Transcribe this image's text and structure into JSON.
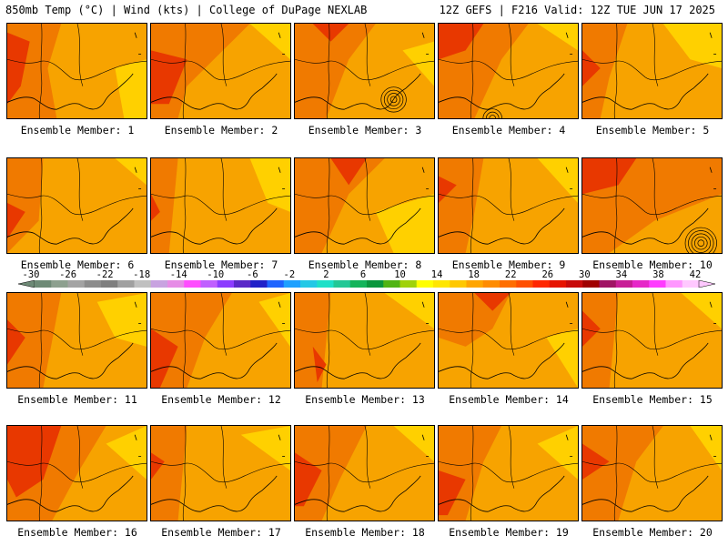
{
  "header": {
    "left": "850mb Temp (°C) | Wind (kts) | College of DuPage NEXLAB",
    "right": "12Z GEFS | F216 Valid: 12Z TUE JUN 17 2025"
  },
  "colors": {
    "background": "#ffffff",
    "land_fill": "#f7a300",
    "warm": "#f07a00",
    "hot": "#e83800",
    "very_hot": "#cc1c00",
    "cool": "#ffd000",
    "outline": "#000000"
  },
  "colorbar": {
    "labels": [
      "-30",
      "-26",
      "-22",
      "-18",
      "-14",
      "-10",
      "-6",
      "-2",
      "2",
      "6",
      "10",
      "14",
      "18",
      "22",
      "26",
      "30",
      "34",
      "38",
      "42"
    ],
    "colors": [
      "#6e8a76",
      "#8da08f",
      "#a3a3a3",
      "#8c8c8c",
      "#7f7f7f",
      "#a0a0a0",
      "#c0c0c0",
      "#c8a3e0",
      "#e68ce6",
      "#ff4dff",
      "#c060ff",
      "#8c3cff",
      "#5a28c8",
      "#2020c8",
      "#1e64ff",
      "#1ea0ff",
      "#23c8e6",
      "#1ee0c8",
      "#23c896",
      "#14b45a",
      "#0a963c",
      "#50b414",
      "#a0d20a",
      "#ffff00",
      "#ffe600",
      "#ffc800",
      "#ffa500",
      "#ff8c00",
      "#ff6e00",
      "#ff5000",
      "#ff2800",
      "#e61400",
      "#c80a0a",
      "#a00000",
      "#a01464",
      "#c81e96",
      "#e628c8",
      "#ff3cff",
      "#ff96ff",
      "#ffc8ff"
    ]
  },
  "panels": [
    {
      "label": "Ensemble Member: 1"
    },
    {
      "label": "Ensemble Member: 2"
    },
    {
      "label": "Ensemble Member: 3"
    },
    {
      "label": "Ensemble Member: 4"
    },
    {
      "label": "Ensemble Member: 5"
    },
    {
      "label": "Ensemble Member: 6"
    },
    {
      "label": "Ensemble Member: 7"
    },
    {
      "label": "Ensemble Member: 8"
    },
    {
      "label": "Ensemble Member: 9"
    },
    {
      "label": "Ensemble Member: 10"
    },
    {
      "label": "Ensemble Member: 11"
    },
    {
      "label": "Ensemble Member: 12"
    },
    {
      "label": "Ensemble Member: 13"
    },
    {
      "label": "Ensemble Member: 14"
    },
    {
      "label": "Ensemble Member: 15"
    },
    {
      "label": "Ensemble Member: 16"
    },
    {
      "label": "Ensemble Member: 17"
    },
    {
      "label": "Ensemble Member: 18"
    },
    {
      "label": "Ensemble Member: 19"
    },
    {
      "label": "Ensemble Member: 20"
    }
  ]
}
